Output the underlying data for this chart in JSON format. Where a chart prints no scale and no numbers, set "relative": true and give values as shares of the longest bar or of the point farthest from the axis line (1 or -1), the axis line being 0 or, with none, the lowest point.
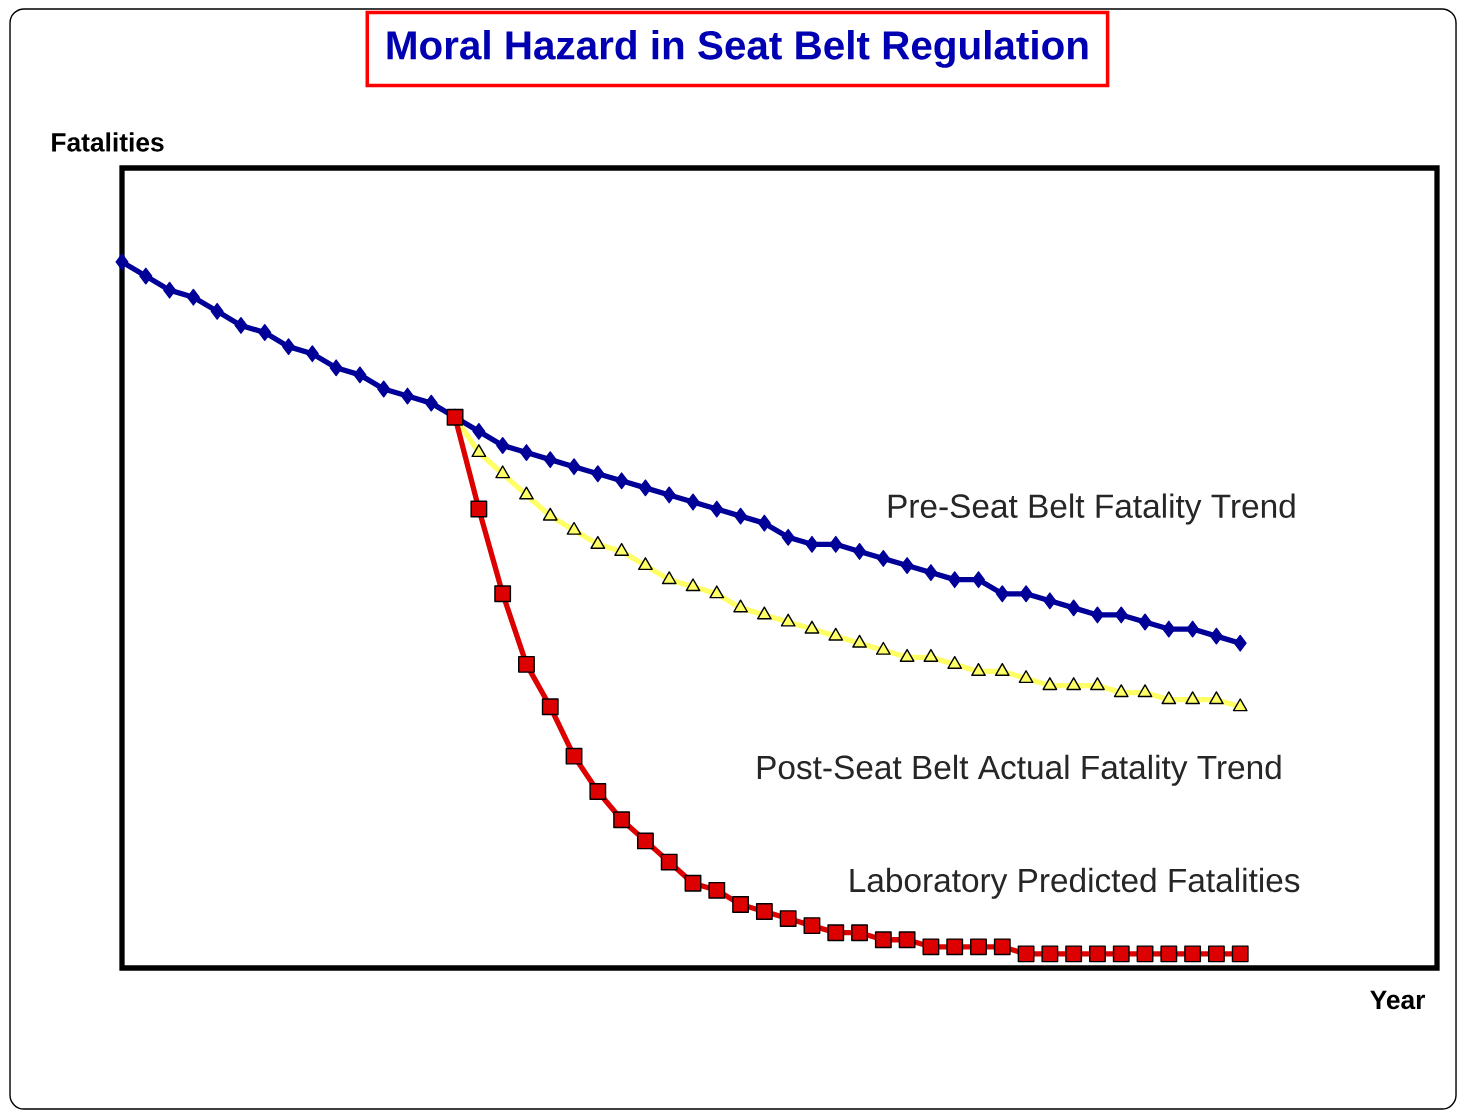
{
  "chart_data": {
    "type": "line",
    "title": "Moral Hazard in Seat Belt Regulation",
    "xlabel": "Year",
    "ylabel": "Fatalities",
    "relative": true,
    "tick_labels": false,
    "categories": [
      null,
      null,
      null,
      null,
      null,
      null,
      null,
      null,
      null,
      null,
      null,
      null,
      null,
      null,
      null,
      null,
      null,
      null,
      null,
      null,
      null,
      null,
      null,
      null,
      null,
      null,
      null,
      null,
      null,
      null,
      null,
      null,
      null,
      null,
      null,
      null,
      null,
      null,
      null,
      null,
      null,
      null,
      null,
      null,
      null,
      null,
      null,
      null
    ],
    "series": [
      {
        "name": "Pre-Seat Belt Fatality Trend",
        "color": "#000099",
        "marker": "diamond",
        "values": [
          1.0,
          0.98,
          0.96,
          0.95,
          0.93,
          0.91,
          0.9,
          0.88,
          0.87,
          0.85,
          0.84,
          0.82,
          0.81,
          0.8,
          0.78,
          0.76,
          0.74,
          0.73,
          0.72,
          0.71,
          0.7,
          0.69,
          0.68,
          0.67,
          0.66,
          0.65,
          0.64,
          0.63,
          0.61,
          0.6,
          0.6,
          0.59,
          0.58,
          0.57,
          0.56,
          0.55,
          0.55,
          0.53,
          0.53,
          0.52,
          0.51,
          0.5,
          0.5,
          0.49,
          0.48,
          0.48,
          0.47,
          0.46
        ]
      },
      {
        "name": "Post-Seat Belt Actual Fatality Trend",
        "color": "#ffff66",
        "marker": "triangle",
        "values": [
          null,
          null,
          null,
          null,
          null,
          null,
          null,
          null,
          null,
          null,
          null,
          null,
          null,
          null,
          0.78,
          0.73,
          0.7,
          0.67,
          0.64,
          0.62,
          0.6,
          0.59,
          0.57,
          0.55,
          0.54,
          0.53,
          0.51,
          0.5,
          0.49,
          0.48,
          0.47,
          0.46,
          0.45,
          0.44,
          0.44,
          0.43,
          0.42,
          0.42,
          0.41,
          0.4,
          0.4,
          0.4,
          0.39,
          0.39,
          0.38,
          0.38,
          0.38,
          0.37
        ]
      },
      {
        "name": "Laboratory Predicted Fatalities",
        "color": "#dd0000",
        "marker": "square",
        "values": [
          null,
          null,
          null,
          null,
          null,
          null,
          null,
          null,
          null,
          null,
          null,
          null,
          null,
          null,
          0.78,
          0.65,
          0.53,
          0.43,
          0.37,
          0.3,
          0.25,
          0.21,
          0.18,
          0.15,
          0.12,
          0.11,
          0.09,
          0.08,
          0.07,
          0.06,
          0.05,
          0.05,
          0.04,
          0.04,
          0.03,
          0.03,
          0.03,
          0.03,
          0.02,
          0.02,
          0.02,
          0.02,
          0.02,
          0.02,
          0.02,
          0.02,
          0.02,
          0.02
        ]
      }
    ]
  }
}
